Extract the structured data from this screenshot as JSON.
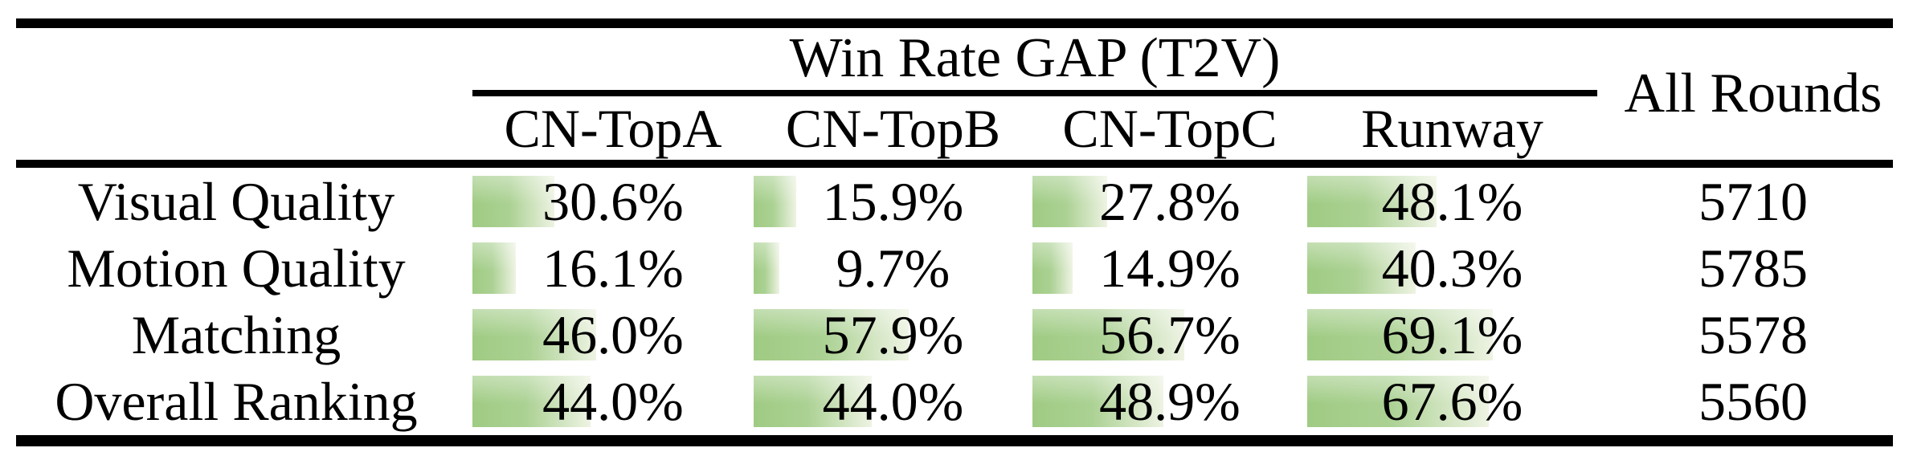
{
  "table": {
    "title": "Win Rate GAP (T2V)",
    "all_rounds_label": "All Rounds",
    "columns": [
      "CN-TopA",
      "CN-TopB",
      "CN-TopC",
      "Runway"
    ],
    "rows": [
      {
        "label": "Visual Quality",
        "values": [
          30.6,
          15.9,
          27.8,
          48.1
        ],
        "display": [
          "30.6%",
          "15.9%",
          "27.8%",
          "48.1%"
        ],
        "all_rounds": "5710"
      },
      {
        "label": "Motion Quality",
        "values": [
          16.1,
          9.7,
          14.9,
          40.3
        ],
        "display": [
          "16.1%",
          "9.7%",
          "14.9%",
          "40.3%"
        ],
        "all_rounds": "5785"
      },
      {
        "label": "Matching",
        "values": [
          46.0,
          57.9,
          56.7,
          69.1
        ],
        "display": [
          "46.0%",
          "57.9%",
          "56.7%",
          "69.1%"
        ],
        "all_rounds": "5578"
      },
      {
        "label": "Overall Ranking",
        "values": [
          44.0,
          44.0,
          48.9,
          67.6
        ],
        "display": [
          "44.0%",
          "44.0%",
          "48.9%",
          "67.6%"
        ],
        "all_rounds": "5560"
      }
    ],
    "bar_colors": {
      "start": "#9fcb83",
      "end": "#eef3e3"
    },
    "rule_color": "#000000"
  },
  "chart_data": {
    "type": "table",
    "title": "Win Rate GAP (T2V)",
    "columns": [
      "CN-TopA",
      "CN-TopB",
      "CN-TopC",
      "Runway",
      "All Rounds"
    ],
    "row_labels": [
      "Visual Quality",
      "Motion Quality",
      "Matching",
      "Overall Ranking"
    ],
    "series": [
      {
        "name": "Visual Quality",
        "win_rate_gap_pct": [
          30.6,
          15.9,
          27.8,
          48.1
        ],
        "all_rounds": 5710
      },
      {
        "name": "Motion Quality",
        "win_rate_gap_pct": [
          16.1,
          9.7,
          14.9,
          40.3
        ],
        "all_rounds": 5785
      },
      {
        "name": "Matching",
        "win_rate_gap_pct": [
          46.0,
          57.9,
          56.7,
          69.1
        ],
        "all_rounds": 5578
      },
      {
        "name": "Overall Ranking",
        "win_rate_gap_pct": [
          44.0,
          44.0,
          48.9,
          67.6
        ],
        "all_rounds": 5560
      }
    ],
    "notes": "Green data bars behind percentages; bar length proportional to win-rate gap (100% = full cell width)"
  }
}
